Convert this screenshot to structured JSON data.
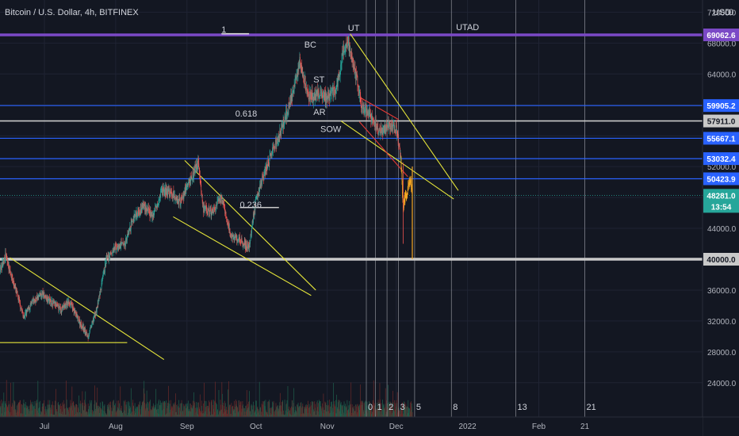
{
  "header": {
    "title": "Bitcoin / U.S. Dollar, 4h, BITFINEX",
    "currency": "USD",
    "currency_suffix": "0"
  },
  "colors": {
    "background": "#131722",
    "up": "#26a69a",
    "down": "#ef5350",
    "volume_up": "#1f5f4c",
    "volume_down": "#6b2a2a",
    "purple_line": "#7b49c6",
    "blue_line": "#2962ff",
    "white_line": "#c9c9c9",
    "yellow_line": "#e6e63a",
    "red_line": "#e53935",
    "orange_candles": "#f5a623",
    "grid": "#1f2333",
    "vertical_marker": "#9598a1"
  },
  "chart_data": {
    "type": "candlestick",
    "symbol": "BTCUSD",
    "timeframe": "4h",
    "exchange": "BITFINEX",
    "ylim": [
      20500,
      74200
    ],
    "yticks": [
      24000,
      28000,
      32000,
      36000,
      40000,
      44000,
      48000,
      52000,
      56000,
      60000,
      64000,
      68000,
      72000
    ],
    "ytick_labels": [
      "24000.0",
      "28000.0",
      "32000.0",
      "36000.0",
      "40000.0",
      "44000.0",
      "48000.0",
      "52000.0",
      "56000.0",
      "60000.0",
      "64000.0",
      "68000.0",
      "72000.0"
    ],
    "xticks": [
      {
        "label": "Jul",
        "date": "2021-07-01"
      },
      {
        "label": "Aug",
        "date": "2021-08-01"
      },
      {
        "label": "Sep",
        "date": "2021-09-01"
      },
      {
        "label": "Oct",
        "date": "2021-10-01"
      },
      {
        "label": "Nov",
        "date": "2021-11-01"
      },
      {
        "label": "Dec",
        "date": "2021-12-01"
      },
      {
        "label": "2022",
        "date": "2022-01-01"
      },
      {
        "label": "Feb",
        "date": "2022-02-01"
      },
      {
        "label": "21",
        "date": "2022-02-21"
      }
    ],
    "series": [
      {
        "name": "BTCUSD",
        "points": [
          {
            "date": "2021-06-10",
            "close": 37000
          },
          {
            "date": "2021-06-14",
            "close": 40500
          },
          {
            "date": "2021-06-18",
            "close": 36500
          },
          {
            "date": "2021-06-22",
            "close": 32500
          },
          {
            "date": "2021-06-26",
            "close": 34500
          },
          {
            "date": "2021-06-30",
            "close": 35500
          },
          {
            "date": "2021-07-04",
            "close": 34500
          },
          {
            "date": "2021-07-08",
            "close": 33500
          },
          {
            "date": "2021-07-12",
            "close": 34500
          },
          {
            "date": "2021-07-16",
            "close": 32000
          },
          {
            "date": "2021-07-20",
            "close": 30000
          },
          {
            "date": "2021-07-24",
            "close": 33800
          },
          {
            "date": "2021-07-28",
            "close": 40000
          },
          {
            "date": "2021-08-01",
            "close": 41500
          },
          {
            "date": "2021-08-05",
            "close": 42000
          },
          {
            "date": "2021-08-09",
            "close": 45500
          },
          {
            "date": "2021-08-13",
            "close": 47000
          },
          {
            "date": "2021-08-17",
            "close": 45500
          },
          {
            "date": "2021-08-21",
            "close": 49000
          },
          {
            "date": "2021-08-25",
            "close": 48500
          },
          {
            "date": "2021-08-29",
            "close": 47500
          },
          {
            "date": "2021-09-02",
            "close": 50000
          },
          {
            "date": "2021-09-06",
            "close": 52600
          },
          {
            "date": "2021-09-08",
            "close": 46500
          },
          {
            "date": "2021-09-12",
            "close": 46000
          },
          {
            "date": "2021-09-16",
            "close": 48000
          },
          {
            "date": "2021-09-20",
            "close": 43000
          },
          {
            "date": "2021-09-24",
            "close": 42500
          },
          {
            "date": "2021-09-28",
            "close": 41500
          },
          {
            "date": "2021-10-01",
            "close": 48000
          },
          {
            "date": "2021-10-05",
            "close": 51500
          },
          {
            "date": "2021-10-09",
            "close": 54500
          },
          {
            "date": "2021-10-13",
            "close": 57500
          },
          {
            "date": "2021-10-17",
            "close": 61500
          },
          {
            "date": "2021-10-20",
            "close": 65500
          },
          {
            "date": "2021-10-24",
            "close": 61000
          },
          {
            "date": "2021-10-28",
            "close": 61500
          },
          {
            "date": "2021-11-01",
            "close": 61000
          },
          {
            "date": "2021-11-05",
            "close": 62000
          },
          {
            "date": "2021-11-08",
            "close": 67000
          },
          {
            "date": "2021-11-10",
            "close": 68000
          },
          {
            "date": "2021-11-13",
            "close": 64500
          },
          {
            "date": "2021-11-16",
            "close": 60000
          },
          {
            "date": "2021-11-20",
            "close": 58500
          },
          {
            "date": "2021-11-24",
            "close": 56500
          },
          {
            "date": "2021-11-28",
            "close": 57500
          },
          {
            "date": "2021-12-01",
            "close": 57000
          },
          {
            "date": "2021-12-03",
            "close": 53000
          },
          {
            "date": "2021-12-04",
            "close": 47000
          },
          {
            "date": "2021-12-06",
            "close": 49000
          },
          {
            "date": "2021-12-07",
            "close": 50500
          },
          {
            "date": "2021-12-08",
            "close": 48281
          }
        ]
      }
    ],
    "horizontal_levels": [
      {
        "value": 69062.6,
        "label": "69062.6",
        "color": "purple"
      },
      {
        "value": 59905.2,
        "label": "59905.2",
        "color": "blue"
      },
      {
        "value": 57911.0,
        "label": "57911.0",
        "color": "white"
      },
      {
        "value": 55667.1,
        "label": "55667.1",
        "color": "blue"
      },
      {
        "value": 53032.4,
        "label": "53032.4",
        "color": "blue"
      },
      {
        "value": 50423.9,
        "label": "50423.9",
        "color": "blue"
      },
      {
        "value": 40000.0,
        "label": "40000.0",
        "color": "white"
      }
    ],
    "current_price": {
      "value": 48281.0,
      "label": "48281.0",
      "countdown": "13:54"
    },
    "annotations": [
      {
        "text": "1",
        "date": "2021-09-16",
        "price": 69350
      },
      {
        "text": "BC",
        "date": "2021-10-22",
        "price": 67400
      },
      {
        "text": "UT",
        "date": "2021-11-10",
        "price": 69600
      },
      {
        "text": "UTAD",
        "date": "2021-12-27",
        "price": 69700
      },
      {
        "text": "ST",
        "date": "2021-10-26",
        "price": 62900
      },
      {
        "text": "0.618",
        "date": "2021-09-22",
        "price": 58500
      },
      {
        "text": "AR",
        "date": "2021-10-26",
        "price": 58700
      },
      {
        "text": "SOW",
        "date": "2021-10-29",
        "price": 56500
      },
      {
        "text": "0.236",
        "date": "2021-09-24",
        "price": 46700
      }
    ],
    "vertical_marker_labels": [
      {
        "text": "0",
        "date": "2021-11-18"
      },
      {
        "text": "1",
        "date": "2021-11-22"
      },
      {
        "text": "2",
        "date": "2021-11-27"
      },
      {
        "text": "3",
        "date": "2021-12-02"
      },
      {
        "text": "5",
        "date": "2021-12-09"
      },
      {
        "text": "8",
        "date": "2021-12-25"
      },
      {
        "text": "13",
        "date": "2022-01-22"
      },
      {
        "text": "21",
        "date": "2022-02-21"
      }
    ]
  }
}
